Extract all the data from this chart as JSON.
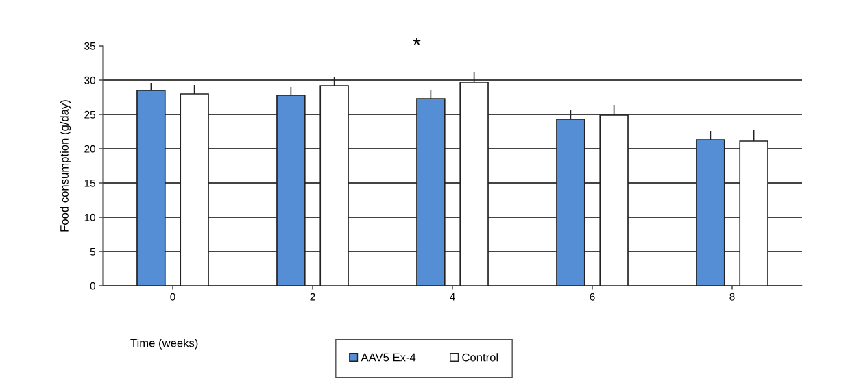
{
  "chart_data": {
    "type": "bar",
    "xlabel": "Time (weeks)",
    "ylabel": "Food consumption (g/day)",
    "categories": [
      "0",
      "2",
      "4",
      "6",
      "8"
    ],
    "series": [
      {
        "name": "AAV5 Ex-4",
        "color": "#558ed5",
        "values": [
          28.5,
          27.8,
          27.3,
          24.3,
          21.3
        ],
        "errors": [
          [
            28.5,
            29.6
          ],
          [
            27.8,
            29.0
          ],
          [
            27.3,
            28.5
          ],
          [
            24.3,
            25.6
          ],
          [
            21.3,
            22.6
          ]
        ]
      },
      {
        "name": "Control",
        "color": "#ffffff",
        "values": [
          28.0,
          29.2,
          29.7,
          24.9,
          21.1
        ],
        "errors": [
          [
            28.0,
            29.3
          ],
          [
            29.2,
            30.4
          ],
          [
            29.7,
            31.2
          ],
          [
            24.9,
            26.4
          ],
          [
            21.1,
            22.8
          ]
        ]
      }
    ],
    "ylim": [
      0,
      35
    ],
    "yticks": [
      0,
      5,
      10,
      15,
      20,
      25,
      30,
      35
    ],
    "grid": "y",
    "legend": "bottom",
    "annotations": [
      "*"
    ]
  }
}
